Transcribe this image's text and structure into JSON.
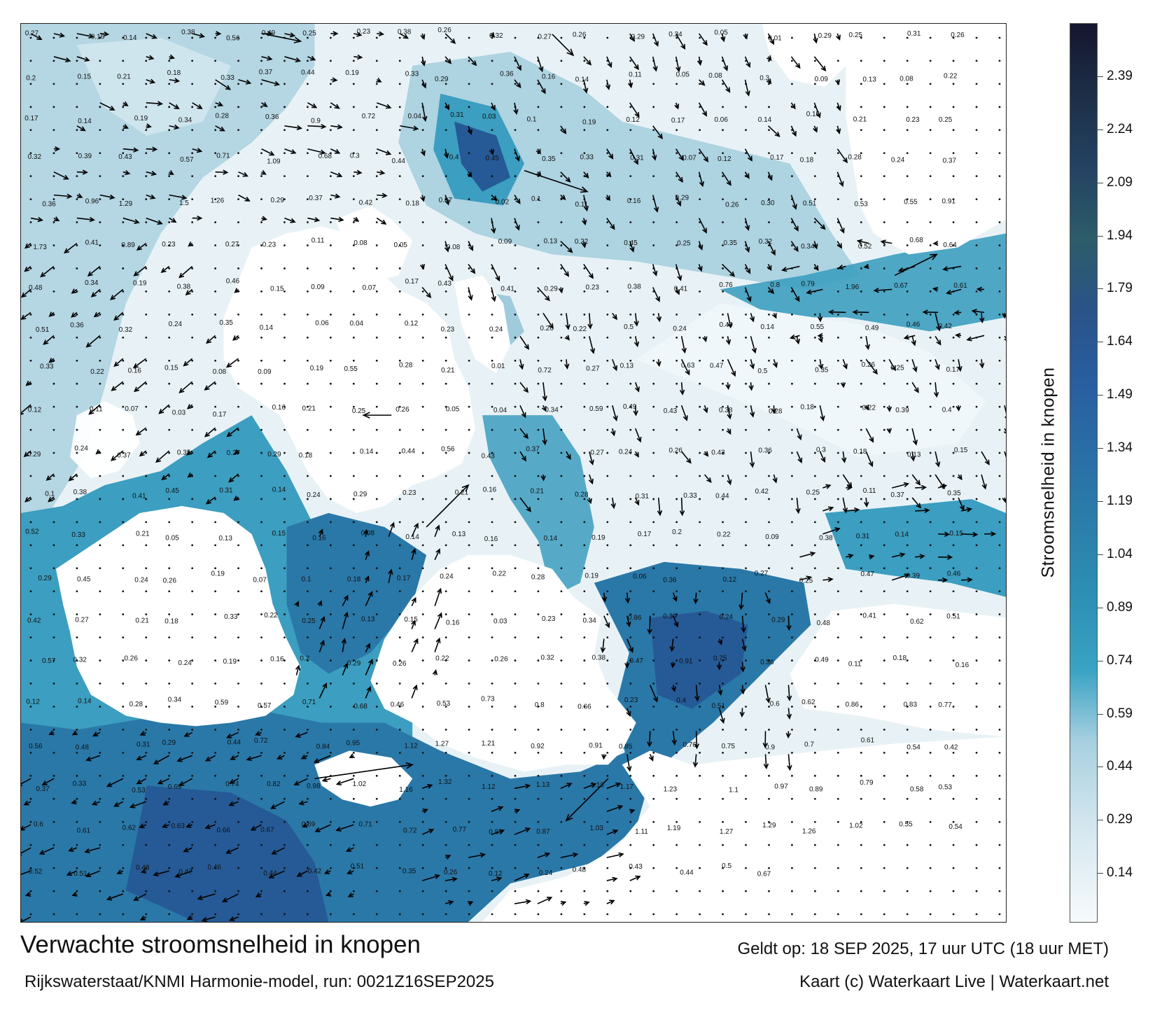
{
  "map": {
    "title": "Verwachte stroomsnelheid in knopen",
    "subtitle": "Rijkswaterstaat/KNMI Harmonie-model, run: 0021Z16SEP2025",
    "valid_time": "Geldt op: 18 SEP 2025, 17 uur UTC (18 uur MET)",
    "credit": "Kaart (c) Waterkaart Live | Waterkaart.net",
    "land_color": "#ffffff",
    "water_colors": [
      "#e4f0f5",
      "#9fcbdc",
      "#3c9ec0",
      "#2a78a8",
      "#255a96"
    ],
    "arrow_color": "#000000"
  },
  "legend": {
    "title": "Stroomsnelheid in knopen",
    "ticks": [
      "2.39",
      "2.24",
      "2.09",
      "1.94",
      "1.79",
      "1.64",
      "1.49",
      "1.34",
      "1.19",
      "1.04",
      "0.89",
      "0.74",
      "0.59",
      "0.44",
      "0.29",
      "0.14"
    ],
    "tick_values": [
      2.39,
      2.24,
      2.09,
      1.94,
      1.79,
      1.64,
      1.49,
      1.34,
      1.19,
      1.04,
      0.89,
      0.74,
      0.59,
      0.44,
      0.29,
      0.14
    ],
    "range": [
      0,
      2.54
    ]
  },
  "value_labels": [
    "0.27",
    "0.16",
    "0.14",
    "0.38",
    "0.56",
    "0.49",
    "0.25",
    "0.23",
    "0.38",
    "0.26",
    "0.32",
    "0.27",
    "0.26",
    "0.29",
    "0.34",
    "0.05",
    "0.01",
    "0.29",
    "0.25",
    "0.31",
    "0.26",
    "0.2",
    "0.15",
    "0.21",
    "0.18",
    "0.33",
    "0.37",
    "0.44",
    "0.19",
    "0.33",
    "0.29",
    "0.36",
    "0.16",
    "0.14",
    "0.11",
    "0.05",
    "0.08",
    "0.3",
    "0.09",
    "0.13",
    "0.08",
    "0.22",
    "0.17",
    "0.14",
    "0.19",
    "0.34",
    "0.28",
    "0.36",
    "0.9",
    "0.72",
    "0.04",
    "0.31",
    "0.03",
    "0.1",
    "0.19",
    "0.12",
    "0.17",
    "0.06",
    "0.14",
    "0.15",
    "0.21",
    "0.23",
    "0.25",
    "0.32",
    "0.39",
    "0.43",
    "0.57",
    "0.71",
    "1.09",
    "0.68",
    "0.3",
    "0.44",
    "0.4",
    "0.45",
    "0.35",
    "0.33",
    "0.31",
    "0.07",
    "0.12",
    "0.17",
    "0.18",
    "0.28",
    "0.24",
    "0.37",
    "0.36",
    "0.96",
    "1.29",
    "1.5",
    "1.26",
    "0.29",
    "0.37",
    "0.42",
    "0.18",
    "0.07",
    "0.02",
    "0.1",
    "0.11",
    "0.16",
    "0.29",
    "0.26",
    "0.30",
    "0.51",
    "0.53",
    "0.55",
    "0.91",
    "1.73",
    "0.41",
    "0.89",
    "0.23",
    "0.27",
    "0.23",
    "0.11",
    "0.08",
    "0.05",
    "0.08",
    "0.09",
    "0.13",
    "0.22",
    "0.45",
    "0.25",
    "0.35",
    "0.32",
    "0.34",
    "0.52",
    "0.68",
    "0.64",
    "0.48",
    "0.34",
    "0.19",
    "0.38",
    "0.46",
    "0.15",
    "0.09",
    "0.07",
    "0.17",
    "0.43",
    "0.41",
    "0.29",
    "0.23",
    "0.38",
    "0.41",
    "0.76",
    "0.8",
    "0.79",
    "1.96",
    "0.67",
    "0.61",
    "0.51",
    "0.36",
    "0.32",
    "0.24",
    "0.35",
    "0.14",
    "0.06",
    "0.04",
    "0.12",
    "0.23",
    "0.24",
    "0.26",
    "0.22",
    "0.5",
    "0.24",
    "0.49",
    "0.14",
    "0.55",
    "0.49",
    "0.46",
    "0.42",
    "0.33",
    "0.22",
    "0.16",
    "0.15",
    "0.08",
    "0.09",
    "0.19",
    "0.55",
    "0.28",
    "0.21",
    "0.01",
    "0.72",
    "0.27",
    "0.13",
    "0.63",
    "0.47",
    "0.5",
    "0.35",
    "0.26",
    "0.25",
    "0.17",
    "0.12",
    "0.11",
    "0.07",
    "0.03",
    "0.17",
    "0.16",
    "0.21",
    "0.25",
    "0.26",
    "0.05",
    "0.04",
    "0.34",
    "0.59",
    "0.49",
    "0.43",
    "0.38",
    "0.28",
    "0.18",
    "0.22",
    "0.39",
    "0.4",
    "0.29",
    "0.24",
    "0.37",
    "0.35",
    "0.27",
    "0.29",
    "0.18",
    "0.14",
    "0.44",
    "0.56",
    "0.43",
    "0.37",
    "0.27",
    "0.24",
    "0.26",
    "0.43",
    "0.36",
    "0.3",
    "0.18",
    "0.13",
    "0.15",
    "0.1",
    "0.38",
    "0.41",
    "0.45",
    "0.31",
    "0.14",
    "0.24",
    "0.29",
    "0.23",
    "0.21",
    "0.16",
    "0.21",
    "0.28",
    "0.31",
    "0.33",
    "0.44",
    "0.42",
    "0.25",
    "0.11",
    "0.37",
    "0.35",
    "0.52",
    "0.33",
    "0.21",
    "0.05",
    "0.13",
    "0.15",
    "0.16",
    "0.08",
    "0.14",
    "0.13",
    "0.16",
    "0.14",
    "0.19",
    "0.17",
    "0.2",
    "0.22",
    "0.09",
    "0.38",
    "0.31",
    "0.14",
    "0.15",
    "0.29",
    "0.45",
    "0.24",
    "0.26",
    "0.19",
    "0.07",
    "0.1",
    "0.18",
    "0.17",
    "0.24",
    "0.22",
    "0.28",
    "0.19",
    "0.06",
    "0.36",
    "0.12",
    "0.27",
    "0.25",
    "0.47",
    "0.39",
    "0.46",
    "0.42",
    "0.27",
    "0.21",
    "0.18",
    "0.33",
    "0.22",
    "0.25",
    "0.13",
    "0.15",
    "0.16",
    "0.03",
    "0.23",
    "0.34",
    "0.86",
    "0.39",
    "0.24",
    "0.29",
    "0.48",
    "0.41",
    "0.62",
    "0.51",
    "0.57",
    "0.32",
    "0.26",
    "0.24",
    "0.19",
    "0.16",
    "0.2",
    "0.29",
    "0.26",
    "0.22",
    "0.26",
    "0.32",
    "0.38",
    "0.47",
    "0.91",
    "0.75",
    "0.56",
    "0.49",
    "0.11",
    "0.18",
    "0.16",
    "0.12",
    "0.14",
    "0.28",
    "0.34",
    "0.59",
    "0.57",
    "0.71",
    "0.68",
    "0.46",
    "0.53",
    "0.73",
    "0.8",
    "0.66",
    "0.23",
    "0.4",
    "0.51",
    "0.6",
    "0.62",
    "0.86",
    "0.83",
    "0.77",
    "0.56",
    "0.48",
    "0.31",
    "0.29",
    "0.44",
    "0.72",
    "0.84",
    "0.95",
    "1.12",
    "1.27",
    "1.21",
    "0.92",
    "0.91",
    "0.85",
    "0.76",
    "0.75",
    "0.9",
    "0.7",
    "0.61",
    "0.54",
    "0.42",
    "0.37",
    "0.33",
    "0.53",
    "0.69",
    "0.74",
    "0.82",
    "0.98",
    "1.02",
    "1.16",
    "1.32",
    "1.12",
    "1.13",
    "1.18",
    "1.17",
    "1.23",
    "1.1",
    "0.97",
    "0.89",
    "0.79",
    "0.58",
    "0.53",
    "0.6",
    "0.61",
    "0.62",
    "0.63",
    "0.66",
    "0.67",
    "0.69",
    "0.71",
    "0.72",
    "0.77",
    "0.81",
    "0.87",
    "1.03",
    "1.11",
    "1.19",
    "1.27",
    "1.29",
    "1.26",
    "1.02",
    "0.55",
    "0.54",
    "0.52",
    "0.51",
    "0.48",
    "0.47",
    "0.46",
    "0.44",
    "0.42",
    "0.51",
    "0.35",
    "0.26",
    "0.12",
    "0.24",
    "0.48",
    "0.43",
    "0.44",
    "0.5",
    "0.67"
  ]
}
